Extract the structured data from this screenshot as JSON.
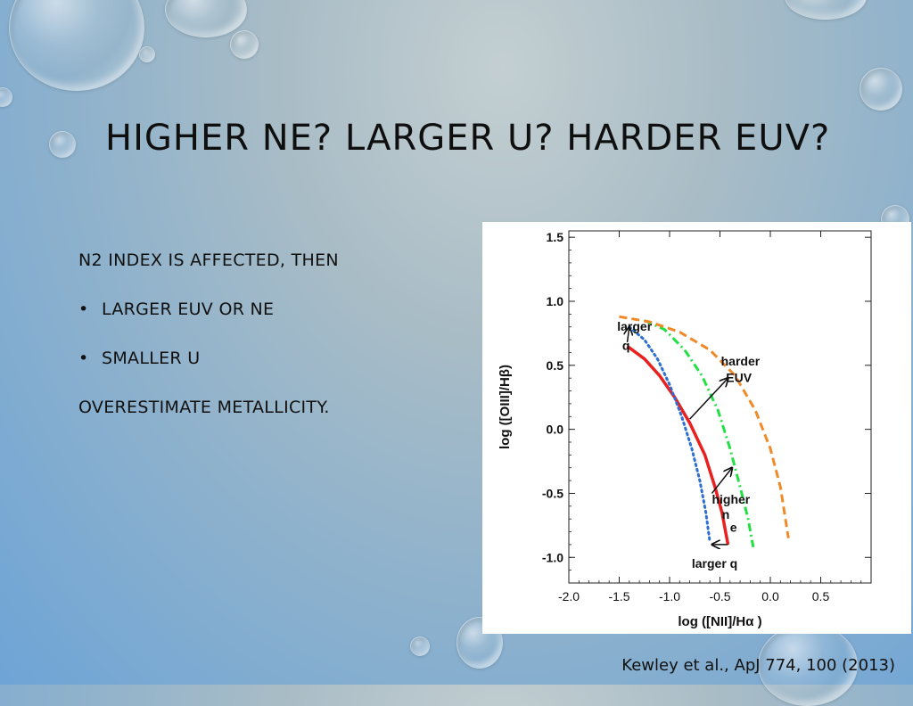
{
  "slide": {
    "title": "HIGHER NE? LARGER U? HARDER EUV?",
    "body": [
      {
        "text": "N2 INDEX IS AFFECTED, THEN",
        "bullet": false
      },
      {
        "text": "LARGER EUV OR NE",
        "bullet": true
      },
      {
        "text": "SMALLER U",
        "bullet": true
      },
      {
        "text": "OVERESTIMATE METALLICITY.",
        "bullet": false
      }
    ],
    "citation": "Kewley et al., ApJ 774, 100 (2013)"
  },
  "chart_data": {
    "type": "line",
    "xlabel": "log ([NII]/Hα )",
    "ylabel": "log ([OIII]/Hβ)",
    "xlim": [
      -2.0,
      1.0
    ],
    "ylim": [
      -1.2,
      1.55
    ],
    "x_ticks": [
      "-2.0",
      "-1.5",
      "-1.0",
      "-0.5",
      "0.0",
      "0.5"
    ],
    "y_ticks": [
      "1.5",
      "1.0",
      "0.5",
      "0.0",
      "-0.5",
      "-1.0"
    ],
    "grid": false,
    "series": [
      {
        "style": "solid",
        "color": "#e8201f",
        "points": [
          [
            -1.42,
            0.65
          ],
          [
            -1.25,
            0.55
          ],
          [
            -1.1,
            0.42
          ],
          [
            -0.95,
            0.25
          ],
          [
            -0.8,
            0.05
          ],
          [
            -0.65,
            -0.2
          ],
          [
            -0.55,
            -0.45
          ],
          [
            -0.48,
            -0.65
          ],
          [
            -0.42,
            -0.9
          ]
        ]
      },
      {
        "style": "dotted",
        "color": "#2d6fd4",
        "points": [
          [
            -1.4,
            0.8
          ],
          [
            -1.25,
            0.7
          ],
          [
            -1.12,
            0.55
          ],
          [
            -1.0,
            0.35
          ],
          [
            -0.88,
            0.1
          ],
          [
            -0.78,
            -0.15
          ],
          [
            -0.7,
            -0.4
          ],
          [
            -0.64,
            -0.65
          ],
          [
            -0.6,
            -0.88
          ]
        ]
      },
      {
        "style": "dashdot",
        "color": "#22e044",
        "points": [
          [
            -1.25,
            0.85
          ],
          [
            -1.05,
            0.78
          ],
          [
            -0.85,
            0.62
          ],
          [
            -0.68,
            0.42
          ],
          [
            -0.52,
            0.15
          ],
          [
            -0.4,
            -0.15
          ],
          [
            -0.3,
            -0.45
          ],
          [
            -0.22,
            -0.7
          ],
          [
            -0.17,
            -0.92
          ]
        ]
      },
      {
        "style": "dashed",
        "color": "#f08a28",
        "points": [
          [
            -1.5,
            0.88
          ],
          [
            -1.2,
            0.84
          ],
          [
            -0.9,
            0.76
          ],
          [
            -0.6,
            0.62
          ],
          [
            -0.35,
            0.42
          ],
          [
            -0.15,
            0.15
          ],
          [
            0.0,
            -0.15
          ],
          [
            0.1,
            -0.45
          ],
          [
            0.15,
            -0.7
          ],
          [
            0.18,
            -0.85
          ]
        ]
      }
    ],
    "annotations": [
      {
        "text": "larger",
        "x": -1.52,
        "y": 0.77
      },
      {
        "text": "q",
        "x": -1.47,
        "y": 0.62
      },
      {
        "text": "harder",
        "x": -0.49,
        "y": 0.5
      },
      {
        "text": "EUV",
        "x": -0.44,
        "y": 0.37
      },
      {
        "text": "higher",
        "x": -0.58,
        "y": -0.58
      },
      {
        "text": "n",
        "x": -0.48,
        "y": -0.7
      },
      {
        "text": "e",
        "x": -0.4,
        "y": -0.8
      },
      {
        "text": "larger q",
        "x": -0.78,
        "y": -1.08
      }
    ],
    "arrows": [
      {
        "from": [
          -1.42,
          0.68
        ],
        "to": [
          -1.4,
          0.8
        ]
      },
      {
        "from": [
          -0.8,
          0.08
        ],
        "to": [
          -0.42,
          0.4
        ]
      },
      {
        "from": [
          -0.58,
          -0.5
        ],
        "to": [
          -0.38,
          -0.3
        ]
      },
      {
        "from": [
          -0.42,
          -0.9
        ],
        "to": [
          -0.58,
          -0.9
        ]
      }
    ]
  }
}
